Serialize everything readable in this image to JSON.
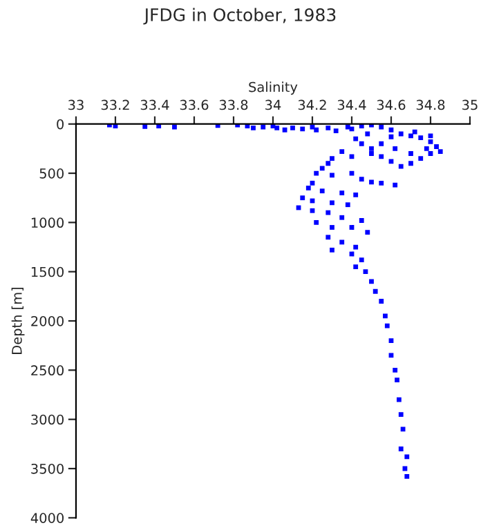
{
  "chart_data": {
    "type": "scatter",
    "title": "JFDG in October, 1983",
    "xlabel": "Salinity",
    "ylabel": "Depth [m]",
    "xlim": [
      33,
      35
    ],
    "xticks": [
      33,
      33.2,
      33.4,
      33.6,
      33.8,
      34,
      34.2,
      34.4,
      34.6,
      34.8,
      35
    ],
    "ylim": [
      4000,
      0
    ],
    "yticks": [
      0,
      500,
      1000,
      1500,
      2000,
      2500,
      3000,
      3500,
      4000
    ],
    "marker": "square",
    "grid": false,
    "series": [
      {
        "color": "#0000ff",
        "x": [
          33.17,
          33.2,
          33.35,
          33.42,
          33.5,
          33.72,
          33.82,
          33.87,
          33.9,
          33.95,
          34.0,
          34.02,
          34.06,
          34.1,
          34.15,
          34.2,
          34.22,
          34.28,
          34.32,
          34.38,
          34.4,
          34.45,
          34.5,
          34.55,
          34.6,
          34.65,
          34.7,
          34.75,
          34.8,
          34.83,
          34.85,
          34.8,
          34.75,
          34.7,
          34.65,
          34.6,
          34.55,
          34.5,
          34.45,
          34.42,
          34.48,
          34.55,
          34.62,
          34.7,
          34.78,
          34.8,
          34.72,
          34.6,
          34.5,
          34.4,
          34.35,
          34.3,
          34.28,
          34.25,
          34.22,
          34.3,
          34.4,
          34.45,
          34.5,
          34.55,
          34.62,
          34.2,
          34.18,
          34.25,
          34.35,
          34.42,
          34.15,
          34.2,
          34.3,
          34.38,
          34.13,
          34.2,
          34.28,
          34.35,
          34.45,
          34.22,
          34.3,
          34.4,
          34.48,
          34.28,
          34.35,
          34.42,
          34.3,
          34.4,
          34.45,
          34.42,
          34.47,
          34.5,
          34.52,
          34.55,
          34.57,
          34.58,
          34.6,
          34.6,
          34.62,
          34.63,
          34.64,
          34.65,
          34.66,
          34.65,
          34.68,
          34.67,
          34.68
        ],
        "values": [
          10,
          20,
          25,
          20,
          30,
          15,
          10,
          20,
          40,
          30,
          20,
          40,
          60,
          40,
          50,
          30,
          60,
          40,
          70,
          30,
          50,
          20,
          10,
          30,
          60,
          100,
          120,
          140,
          180,
          230,
          280,
          300,
          350,
          400,
          430,
          380,
          330,
          250,
          200,
          150,
          100,
          200,
          250,
          300,
          250,
          120,
          80,
          130,
          300,
          330,
          280,
          350,
          400,
          450,
          500,
          520,
          500,
          560,
          590,
          600,
          620,
          600,
          650,
          680,
          700,
          720,
          750,
          780,
          800,
          820,
          850,
          880,
          900,
          950,
          980,
          1000,
          1050,
          1050,
          1100,
          1150,
          1200,
          1250,
          1280,
          1320,
          1380,
          1450,
          1500,
          1600,
          1700,
          1800,
          1950,
          2050,
          2200,
          2350,
          2500,
          2600,
          2800,
          2950,
          3100,
          3300,
          3380,
          3500,
          3580
        ]
      }
    ]
  }
}
